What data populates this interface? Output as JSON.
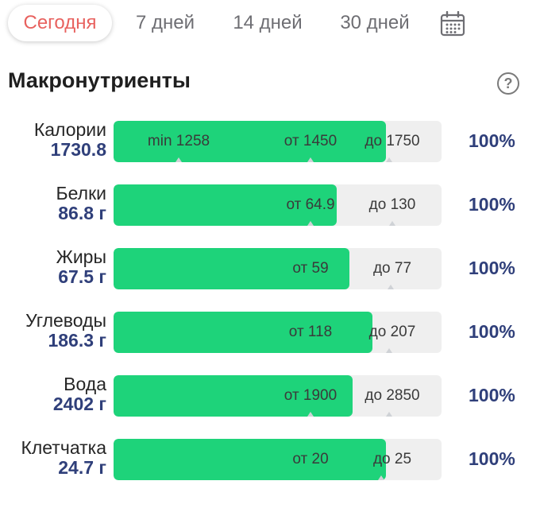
{
  "tabs": [
    {
      "label": "Сегодня",
      "active": true
    },
    {
      "label": "7 дней",
      "active": false
    },
    {
      "label": "14 дней",
      "active": false
    },
    {
      "label": "30 дней",
      "active": false
    }
  ],
  "heading": "Макронутриенты",
  "help_icon": "question-circle-icon",
  "calendar_icon": "calendar-icon",
  "colors": {
    "accent_active_tab": "#e8625f",
    "bar_fill": "#1ed37a",
    "bar_track": "#efefef",
    "value_text": "#2f3f7a"
  },
  "nutrients": [
    {
      "label": "Калории",
      "value": "1730.8",
      "fill_fraction": 0.83,
      "percent": "100%",
      "marks": [
        {
          "text": "min 1258",
          "tick": true
        },
        {
          "text": "от 1450",
          "tick": true
        },
        {
          "text": "до 1750",
          "tick": true
        }
      ]
    },
    {
      "label": "Белки",
      "value": "86.8 г",
      "fill_fraction": 0.68,
      "percent": "100%",
      "marks": [
        {
          "text": "от 64.9",
          "tick": true
        },
        {
          "text": "до 130",
          "tick": true
        }
      ]
    },
    {
      "label": "Жиры",
      "value": "67.5 г",
      "fill_fraction": 0.72,
      "percent": "100%",
      "marks": [
        {
          "text": "от 59",
          "tick": false
        },
        {
          "text": "до 77",
          "tick": true
        }
      ]
    },
    {
      "label": "Углеводы",
      "value": "186.3 г",
      "fill_fraction": 0.79,
      "percent": "100%",
      "marks": [
        {
          "text": "от 118",
          "tick": false
        },
        {
          "text": "до 207",
          "tick": true
        }
      ]
    },
    {
      "label": "Вода",
      "value": "2402 г",
      "fill_fraction": 0.73,
      "percent": "100%",
      "marks": [
        {
          "text": "от 1900",
          "tick": true
        },
        {
          "text": "до 2850",
          "tick": true
        }
      ]
    },
    {
      "label": "Клетчатка",
      "value": "24.7 г",
      "fill_fraction": 0.83,
      "percent": "100%",
      "marks": [
        {
          "text": "от 20",
          "tick": false
        },
        {
          "text": "до 25",
          "tick": true
        }
      ]
    }
  ]
}
